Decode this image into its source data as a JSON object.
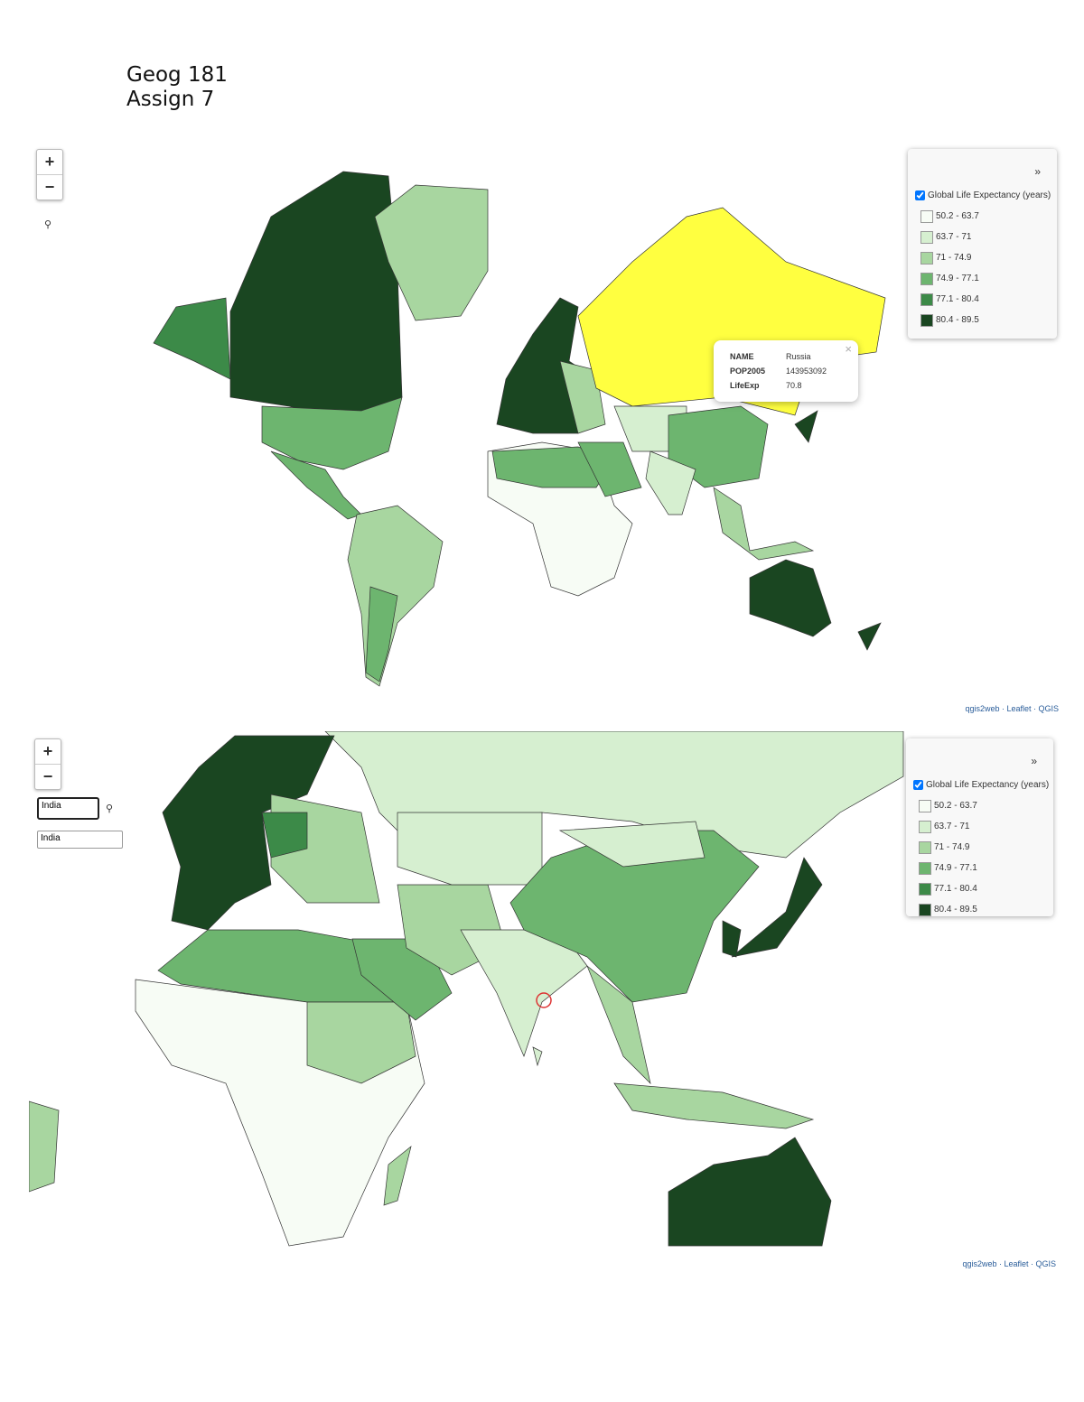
{
  "header": {
    "lines": [
      "Geog 181",
      "Assign 7"
    ]
  },
  "maps": [
    {
      "zoom_in": "+",
      "zoom_out": "−",
      "legend": {
        "toggle": "»",
        "layer": "Global Life Expectancy (years)",
        "classes": [
          {
            "label": "50.2 - 63.7",
            "color": "#f7fcf5"
          },
          {
            "label": "63.7 - 71",
            "color": "#d6efd0"
          },
          {
            "label": "71 - 74.9",
            "color": "#a8d6a0"
          },
          {
            "label": "74.9 - 77.1",
            "color": "#6db56f"
          },
          {
            "label": "77.1 - 80.4",
            "color": "#3c8a48"
          },
          {
            "label": "80.4 - 89.5",
            "color": "#1a4621"
          }
        ]
      },
      "popup": {
        "close": "×",
        "rows": [
          [
            "NAME",
            "Russia"
          ],
          [
            "POP2005",
            "143953092"
          ],
          [
            "LifeExp",
            "70.8"
          ]
        ]
      },
      "attribution": "qgis2web · Leaflet · QGIS"
    },
    {
      "zoom_in": "+",
      "zoom_out": "−",
      "search": {
        "input": "India",
        "result": "India"
      },
      "legend": {
        "toggle": "»",
        "layer": "Global Life Expectancy (years)",
        "classes": [
          {
            "label": "50.2 - 63.7",
            "color": "#f7fcf5"
          },
          {
            "label": "63.7 - 71",
            "color": "#d6efd0"
          },
          {
            "label": "71 - 74.9",
            "color": "#a8d6a0"
          },
          {
            "label": "74.9 - 77.1",
            "color": "#6db56f"
          },
          {
            "label": "77.1 - 80.4",
            "color": "#3c8a48"
          },
          {
            "label": "80.4 - 89.5",
            "color": "#1a4621"
          }
        ]
      },
      "attribution": "qgis2web · Leaflet · QGIS"
    }
  ]
}
